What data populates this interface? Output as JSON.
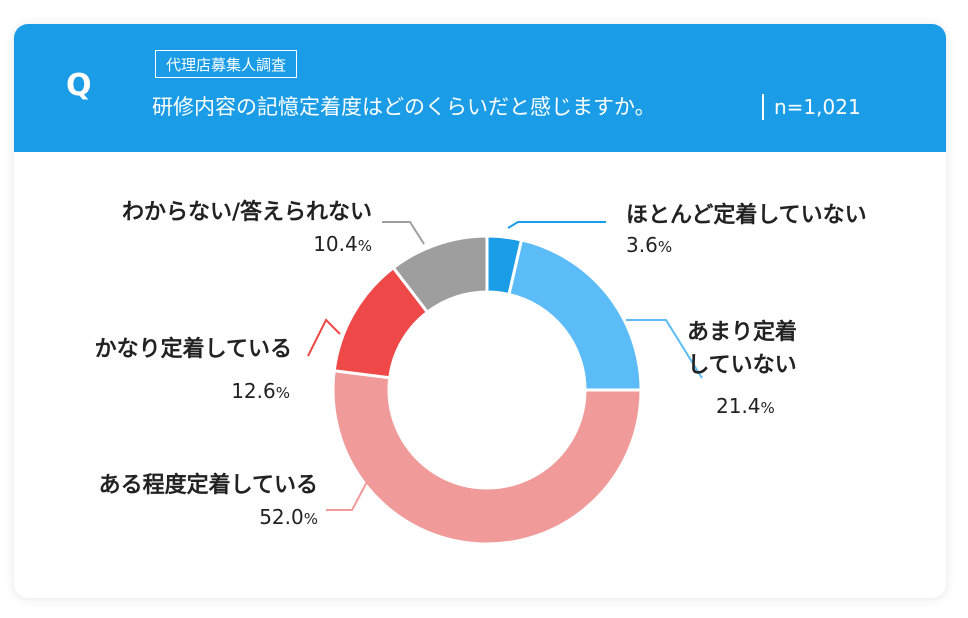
{
  "header": {
    "q_mark": "Q",
    "tag": "代理店募集人調査",
    "question": "研修内容の記憶定着度はどのくらいだと感じますか。",
    "sample": "n=1,021"
  },
  "colors": {
    "header_bg": "#1a9ce6",
    "slice_none": "#1a9ce6",
    "slice_little": "#5bbcf7",
    "slice_some": "#f19a9a",
    "slice_well": "#ee4848",
    "slice_unknown": "#9e9e9e"
  },
  "chart_data": {
    "type": "pie",
    "variant": "donut",
    "slices": [
      {
        "name": "ほとんど定着していない",
        "value": 3.6,
        "pct_text": "3.6",
        "color": "#1a9ce6"
      },
      {
        "name": "あまり定着していない",
        "name_lines": [
          "あまり定着",
          "していない"
        ],
        "value": 21.4,
        "pct_text": "21.4",
        "color": "#5bbcf7"
      },
      {
        "name": "ある程度定着している",
        "value": 52.0,
        "pct_text": "52.0",
        "color": "#f19a9a"
      },
      {
        "name": "かなり定着している",
        "value": 12.6,
        "pct_text": "12.6",
        "color": "#ee4848"
      },
      {
        "name": "わからない/答えられない",
        "value": 10.4,
        "pct_text": "10.4",
        "color": "#9e9e9e"
      }
    ],
    "unit": "%",
    "start": "12 o'clock",
    "direction": "clockwise"
  }
}
